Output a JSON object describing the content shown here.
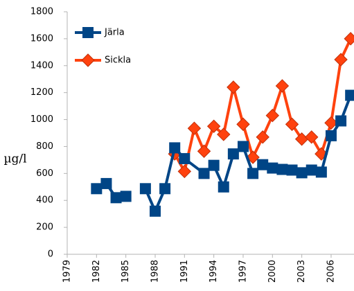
{
  "chart_data": {
    "type": "line",
    "y_label": "µg/l",
    "series": [
      {
        "name": "Järla",
        "color": "#004586",
        "marker": "square",
        "x": [
          1982,
          1983,
          1984,
          1985,
          1986,
          1987,
          1988,
          1989,
          1990,
          1991,
          1993,
          1994,
          1995,
          1996,
          1997,
          1998,
          1999,
          2000,
          2001,
          2002,
          2003,
          2004,
          2005,
          2006,
          2007,
          2008
        ],
        "values": [
          487,
          525,
          420,
          430,
          null,
          487,
          320,
          487,
          790,
          710,
          600,
          660,
          500,
          745,
          800,
          600,
          665,
          640,
          630,
          625,
          605,
          625,
          610,
          880,
          990,
          1180
        ]
      },
      {
        "name": "Sickla",
        "color": "#ff420e",
        "marker": "diamond",
        "x": [
          1990,
          1991,
          1992,
          1993,
          1994,
          1995,
          1996,
          1997,
          1998,
          1999,
          2000,
          2001,
          2002,
          2003,
          2004,
          2005,
          2006,
          2007,
          2008
        ],
        "values": [
          745,
          615,
          935,
          765,
          950,
          890,
          1240,
          965,
          720,
          870,
          1030,
          1250,
          965,
          855,
          870,
          745,
          975,
          1445,
          1600
        ]
      }
    ],
    "xlim": [
      1979,
      2008.2
    ],
    "xticks": [
      1979,
      1982,
      1985,
      1988,
      1991,
      1994,
      1997,
      2000,
      2003,
      2006
    ],
    "ylim": [
      0,
      1800
    ],
    "yticks": [
      0,
      200,
      400,
      600,
      800,
      1000,
      1200,
      1400,
      1600,
      1800
    ],
    "grid": false
  }
}
